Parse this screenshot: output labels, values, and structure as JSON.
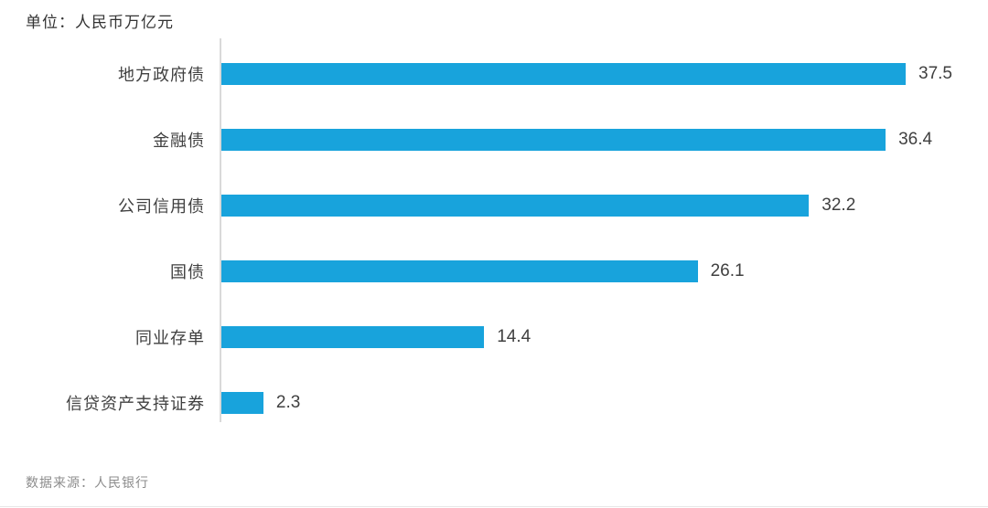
{
  "unit_label": "单位：人民币万亿元",
  "source_label": "数据来源：人民银行",
  "colors": {
    "bar": "#18a3dc",
    "axis": "#d9d9d9",
    "label_text": "#404040",
    "title_text": "#333333",
    "source_text": "#8c8c8c"
  },
  "chart_data": {
    "type": "bar",
    "orientation": "horizontal",
    "title": "单位：人民币万亿元",
    "xlabel": "",
    "ylabel": "",
    "categories": [
      "地方政府债",
      "金融债",
      "公司信用债",
      "国债",
      "同业存单",
      "信贷资产支持证券"
    ],
    "values": [
      37.5,
      36.4,
      32.2,
      26.1,
      14.4,
      2.3
    ],
    "value_labels": [
      "37.5",
      "36.4",
      "32.2",
      "26.1",
      "14.4",
      "2.3"
    ],
    "xlim": [
      0,
      40
    ],
    "grid": false,
    "legend": false,
    "data_labels_position": "outside-end",
    "source": "数据来源：人民银行"
  }
}
